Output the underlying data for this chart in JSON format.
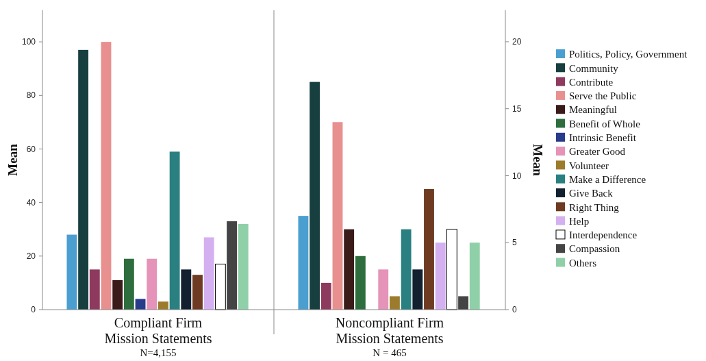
{
  "chart_data": {
    "type": "bar",
    "categories": [
      "Compliant Firm\nMission Statements",
      "Noncompliant Firm\nMission Statements"
    ],
    "annotations": [
      "N=4,155",
      "N = 465"
    ],
    "ylabel": "Mean",
    "y2label": "Mean",
    "ylim": [
      0,
      111.8
    ],
    "yticks": [
      0,
      20,
      40,
      60,
      80,
      100
    ],
    "y2lim": [
      0,
      22.35
    ],
    "y2ticks": [
      0,
      5,
      10,
      15,
      20
    ],
    "grid": false,
    "legend": "right",
    "series": [
      {
        "color": "#4a9fd0",
        "values": [
          28,
          null
        ]
      },
      {
        "color": "#173f3f",
        "values": [
          97,
          null
        ]
      },
      {
        "color": "#8e3a5e",
        "values": [
          15,
          null
        ]
      },
      {
        "color": "#e8908f",
        "values": [
          100,
          null
        ]
      },
      {
        "color": "#3b1a1a",
        "values": [
          11,
          null
        ]
      },
      {
        "color": "#2e6e3e",
        "values": [
          19,
          null
        ]
      },
      {
        "color": "#283c8c",
        "values": [
          4,
          null
        ]
      },
      {
        "color": "#e593b8",
        "values": [
          19,
          null
        ]
      },
      {
        "color": "#9c7c2c",
        "values": [
          3,
          null
        ]
      },
      {
        "color": "#2a8080",
        "values": [
          59,
          null
        ]
      },
      {
        "color": "#122030",
        "values": [
          15,
          null
        ]
      },
      {
        "color": "#6e3a22",
        "values": [
          13,
          null
        ]
      },
      {
        "color": "#d4b0f0",
        "values": [
          27,
          null
        ]
      },
      {
        "color": "#ffffff",
        "values": [
          17,
          null
        ]
      },
      {
        "color": "#444444",
        "values": [
          33,
          null
        ]
      },
      {
        "color": "#8fd0a8",
        "values": [
          32,
          null
        ]
      },
      {
        "name": "Politics, Policy, Government",
        "color": "#4a9fd0",
        "axis": "y2",
        "values": [
          null,
          7
        ]
      },
      {
        "name": "Community",
        "color": "#173f3f",
        "axis": "y2",
        "values": [
          null,
          17
        ]
      },
      {
        "name": "Contribute",
        "color": "#8e3a5e",
        "axis": "y2",
        "values": [
          null,
          2
        ]
      },
      {
        "name": "Serve the Public",
        "color": "#e8908f",
        "axis": "y2",
        "values": [
          null,
          14
        ]
      },
      {
        "name": "Meaningful",
        "color": "#3b1a1a",
        "axis": "y2",
        "values": [
          null,
          6
        ]
      },
      {
        "name": "Benefit of Whole",
        "color": "#2e6e3e",
        "axis": "y2",
        "values": [
          null,
          4
        ]
      },
      {
        "name": "Intrinsic Benefit",
        "color": "#283c8c",
        "axis": "y2",
        "values": [
          null,
          0
        ]
      },
      {
        "name": "Greater Good",
        "color": "#e593b8",
        "axis": "y2",
        "values": [
          null,
          3
        ]
      },
      {
        "name": "Volunteer",
        "color": "#9c7c2c",
        "axis": "y2",
        "values": [
          null,
          1
        ]
      },
      {
        "name": "Make a Difference",
        "color": "#2a8080",
        "axis": "y2",
        "values": [
          null,
          6
        ]
      },
      {
        "name": "Give Back",
        "color": "#122030",
        "axis": "y2",
        "values": [
          null,
          3
        ]
      },
      {
        "name": "Right Thing",
        "color": "#6e3a22",
        "axis": "y2",
        "values": [
          null,
          9
        ]
      },
      {
        "name": "Help",
        "color": "#d4b0f0",
        "axis": "y2",
        "values": [
          null,
          5
        ]
      },
      {
        "name": "Interdependence",
        "color": "#ffffff",
        "axis": "y2",
        "values": [
          null,
          6
        ]
      },
      {
        "name": "Compassion",
        "color": "#444444",
        "axis": "y2",
        "values": [
          null,
          1
        ]
      },
      {
        "name": "Others",
        "color": "#8fd0a8",
        "axis": "y2",
        "values": [
          null,
          5
        ]
      }
    ]
  }
}
